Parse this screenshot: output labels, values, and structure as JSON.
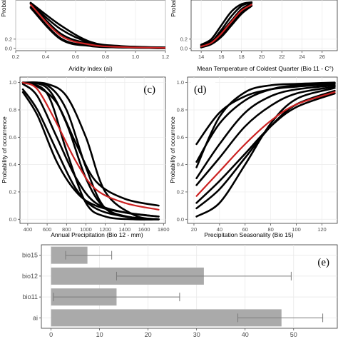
{
  "chart_data": [
    {
      "id": "a",
      "type": "line",
      "panel_label": "",
      "xlabel": "Aridity Index (ai)",
      "ylabel": "Probab",
      "xticks": [
        "0.2",
        "0.4",
        "0.6",
        "0.8",
        "1.0",
        "1.2"
      ],
      "yticks": [
        "0.0",
        "0.2"
      ],
      "xlim": [
        0.2,
        1.2
      ],
      "ylim": [
        -0.05,
        1.05
      ],
      "grid": true,
      "highlight_color": "#cc2222",
      "series_color": "#000000",
      "highlight_index": 2,
      "series": [
        {
          "values": [
            [
              0.3,
              0.98
            ],
            [
              0.5,
              0.32
            ],
            [
              0.7,
              0.1
            ],
            [
              0.9,
              0.04
            ],
            [
              1.2,
              0.015
            ]
          ]
        },
        {
          "values": [
            [
              0.3,
              0.88
            ],
            [
              0.5,
              0.2
            ],
            [
              0.7,
              0.05
            ],
            [
              0.9,
              0.02
            ],
            [
              1.2,
              0.005
            ]
          ]
        },
        {
          "values": [
            [
              0.3,
              0.95
            ],
            [
              0.5,
              0.28
            ],
            [
              0.7,
              0.08
            ],
            [
              0.9,
              0.03
            ],
            [
              1.2,
              0.01
            ]
          ]
        },
        {
          "values": [
            [
              0.3,
              0.99
            ],
            [
              0.5,
              0.5
            ],
            [
              0.7,
              0.14
            ],
            [
              0.9,
              0.05
            ],
            [
              1.2,
              0.02
            ]
          ]
        },
        {
          "values": [
            [
              0.3,
              0.97
            ],
            [
              0.5,
              0.42
            ],
            [
              0.7,
              0.12
            ],
            [
              0.9,
              0.04
            ],
            [
              1.2,
              0.018
            ]
          ]
        },
        {
          "values": [
            [
              0.3,
              0.9
            ],
            [
              0.5,
              0.22
            ],
            [
              0.7,
              0.06
            ],
            [
              0.9,
              0.02
            ],
            [
              1.2,
              0.005
            ]
          ]
        }
      ]
    },
    {
      "id": "b",
      "type": "line",
      "panel_label": "",
      "xlabel": "Mean Temperature of Coldest Quarter (Bio 11 - C°)",
      "ylabel": "Probab",
      "xticks": [
        "14",
        "16",
        "18",
        "20",
        "22",
        "24",
        "26"
      ],
      "yticks": [
        "0.0",
        "0.2"
      ],
      "xlim": [
        13,
        27.5
      ],
      "ylim": [
        -0.05,
        1.05
      ],
      "grid": true,
      "highlight_color": "#cc2222",
      "series_color": "#000000",
      "highlight_index": 3,
      "series": [
        {
          "values": [
            [
              14,
              0.06
            ],
            [
              15,
              0.15
            ],
            [
              16,
              0.35
            ],
            [
              17,
              0.6
            ],
            [
              18,
              0.85
            ],
            [
              19,
              0.98
            ]
          ]
        },
        {
          "values": [
            [
              14,
              0.02
            ],
            [
              15,
              0.09
            ],
            [
              16,
              0.25
            ],
            [
              17,
              0.5
            ],
            [
              18,
              0.75
            ],
            [
              19,
              0.92
            ]
          ]
        },
        {
          "values": [
            [
              14,
              0.05
            ],
            [
              15,
              0.14
            ],
            [
              16,
              0.4
            ],
            [
              17,
              0.7
            ],
            [
              18,
              0.92
            ],
            [
              19,
              1.0
            ]
          ]
        },
        {
          "values": [
            [
              14,
              0.04
            ],
            [
              15,
              0.12
            ],
            [
              16,
              0.32
            ],
            [
              17,
              0.58
            ],
            [
              18,
              0.82
            ],
            [
              19,
              0.95
            ]
          ]
        },
        {
          "values": [
            [
              14,
              0.08
            ],
            [
              15,
              0.2
            ],
            [
              16,
              0.5
            ],
            [
              17,
              0.8
            ],
            [
              18,
              0.96
            ],
            [
              19,
              1.0
            ]
          ]
        },
        {
          "values": [
            [
              14,
              0.03
            ],
            [
              15,
              0.1
            ],
            [
              16,
              0.28
            ],
            [
              17,
              0.55
            ],
            [
              18,
              0.78
            ],
            [
              19,
              0.93
            ]
          ]
        }
      ]
    },
    {
      "id": "c",
      "type": "line",
      "panel_label": "(c)",
      "xlabel": "Annual Precipitation (Bio 12 - mm)",
      "ylabel": "Probability of occurrence",
      "xticks": [
        "400",
        "600",
        "800",
        "1000",
        "1200",
        "1400",
        "1600",
        "1800"
      ],
      "yticks": [
        "0.0",
        "0.2",
        "0.4",
        "0.6",
        "0.8",
        "1.0"
      ],
      "xlim": [
        320,
        1820
      ],
      "ylim": [
        -0.03,
        1.04
      ],
      "grid": true,
      "highlight_color": "#cc2222",
      "series_color": "#000000",
      "highlight_index": 4,
      "series": [
        {
          "values": [
            [
              350,
              0.95
            ],
            [
              500,
              0.8
            ],
            [
              700,
              0.5
            ],
            [
              900,
              0.22
            ],
            [
              1100,
              0.08
            ],
            [
              1400,
              0.02
            ],
            [
              1750,
              0.0
            ]
          ]
        },
        {
          "values": [
            [
              350,
              0.93
            ],
            [
              500,
              0.76
            ],
            [
              700,
              0.42
            ],
            [
              900,
              0.2
            ],
            [
              1100,
              0.1
            ],
            [
              1400,
              0.05
            ],
            [
              1750,
              0.02
            ]
          ]
        },
        {
          "values": [
            [
              350,
              1.0
            ],
            [
              600,
              0.92
            ],
            [
              800,
              0.5
            ],
            [
              1000,
              0.12
            ],
            [
              1200,
              0.02
            ],
            [
              1500,
              0.0
            ],
            [
              1750,
              0.0
            ]
          ]
        },
        {
          "values": [
            [
              350,
              1.0
            ],
            [
              600,
              0.98
            ],
            [
              800,
              0.8
            ],
            [
              1000,
              0.38
            ],
            [
              1200,
              0.08
            ],
            [
              1500,
              0.01
            ],
            [
              1750,
              0.0
            ]
          ]
        },
        {
          "values": [
            [
              350,
              1.0
            ],
            [
              500,
              0.95
            ],
            [
              700,
              0.7
            ],
            [
              900,
              0.42
            ],
            [
              1100,
              0.22
            ],
            [
              1400,
              0.12
            ],
            [
              1750,
              0.07
            ]
          ]
        },
        {
          "values": [
            [
              350,
              1.0
            ],
            [
              600,
              0.96
            ],
            [
              800,
              0.7
            ],
            [
              1000,
              0.3
            ],
            [
              1200,
              0.08
            ],
            [
              1500,
              0.01
            ],
            [
              1750,
              0.0
            ]
          ]
        },
        {
          "values": [
            [
              350,
              1.0
            ],
            [
              500,
              0.97
            ],
            [
              700,
              0.85
            ],
            [
              900,
              0.55
            ],
            [
              1100,
              0.28
            ],
            [
              1400,
              0.15
            ],
            [
              1750,
              0.1
            ]
          ]
        },
        {
          "values": [
            [
              350,
              0.99
            ],
            [
              500,
              0.9
            ],
            [
              700,
              0.6
            ],
            [
              900,
              0.3
            ],
            [
              1100,
              0.12
            ],
            [
              1400,
              0.05
            ],
            [
              1750,
              0.02
            ]
          ]
        },
        {
          "values": [
            [
              350,
              1.0
            ],
            [
              600,
              0.99
            ],
            [
              800,
              0.9
            ],
            [
              1000,
              0.6
            ],
            [
              1200,
              0.2
            ],
            [
              1500,
              0.03
            ],
            [
              1750,
              0.0
            ]
          ]
        }
      ]
    },
    {
      "id": "d",
      "type": "line",
      "panel_label": "(d)",
      "xlabel": "Precipitation Seasonality (Bio 15)",
      "ylabel": "Probability of occurrence",
      "xticks": [
        "20",
        "40",
        "60",
        "80",
        "100",
        "120"
      ],
      "yticks": [
        "0.0",
        "0.2",
        "0.4",
        "0.6",
        "0.8",
        "1.0"
      ],
      "xlim": [
        15,
        132
      ],
      "ylim": [
        -0.03,
        1.04
      ],
      "grid": true,
      "highlight_color": "#cc2222",
      "series_color": "#000000",
      "highlight_index": 4,
      "series": [
        {
          "values": [
            [
              22,
              0.55
            ],
            [
              40,
              0.78
            ],
            [
              60,
              0.9
            ],
            [
              80,
              0.95
            ],
            [
              100,
              0.97
            ],
            [
              130,
              0.99
            ]
          ]
        },
        {
          "values": [
            [
              22,
              0.42
            ],
            [
              40,
              0.7
            ],
            [
              60,
              0.87
            ],
            [
              80,
              0.95
            ],
            [
              100,
              0.98
            ],
            [
              130,
              0.99
            ]
          ]
        },
        {
          "values": [
            [
              22,
              0.3
            ],
            [
              40,
              0.55
            ],
            [
              60,
              0.78
            ],
            [
              80,
              0.9
            ],
            [
              100,
              0.95
            ],
            [
              130,
              0.98
            ]
          ]
        },
        {
          "values": [
            [
              22,
              0.25
            ],
            [
              40,
              0.45
            ],
            [
              60,
              0.68
            ],
            [
              80,
              0.83
            ],
            [
              100,
              0.92
            ],
            [
              130,
              0.97
            ]
          ]
        },
        {
          "values": [
            [
              22,
              0.17
            ],
            [
              40,
              0.35
            ],
            [
              60,
              0.55
            ],
            [
              80,
              0.72
            ],
            [
              100,
              0.84
            ],
            [
              130,
              0.93
            ]
          ]
        },
        {
          "values": [
            [
              22,
              0.12
            ],
            [
              40,
              0.28
            ],
            [
              60,
              0.48
            ],
            [
              80,
              0.68
            ],
            [
              100,
              0.82
            ],
            [
              130,
              0.92
            ]
          ]
        },
        {
          "values": [
            [
              22,
              0.02
            ],
            [
              40,
              0.12
            ],
            [
              60,
              0.4
            ],
            [
              80,
              0.7
            ],
            [
              100,
              0.88
            ],
            [
              130,
              0.96
            ]
          ]
        },
        {
          "values": [
            [
              22,
              0.38
            ],
            [
              40,
              0.75
            ],
            [
              60,
              0.93
            ],
            [
              80,
              0.98
            ],
            [
              100,
              0.99
            ],
            [
              130,
              1.0
            ]
          ]
        },
        {
          "values": [
            [
              22,
              0.08
            ],
            [
              40,
              0.22
            ],
            [
              60,
              0.45
            ],
            [
              80,
              0.68
            ],
            [
              100,
              0.84
            ],
            [
              130,
              0.94
            ]
          ]
        }
      ]
    },
    {
      "id": "e",
      "type": "bar",
      "orientation": "horizontal",
      "panel_label": "(e)",
      "categories": [
        "ai",
        "bio11",
        "bio12",
        "bio15"
      ],
      "values": [
        47.5,
        13.5,
        31.5,
        7.5
      ],
      "error_low": [
        38.5,
        0.5,
        13.5,
        3.0
      ],
      "error_high": [
        56.0,
        26.5,
        49.5,
        12.5
      ],
      "xticks": [
        "0",
        "10",
        "20",
        "30",
        "40",
        "50"
      ],
      "xlim": [
        -2,
        59
      ],
      "grid": true,
      "bar_color": "#aaaaaa",
      "error_color": "#7a7a7a"
    }
  ]
}
